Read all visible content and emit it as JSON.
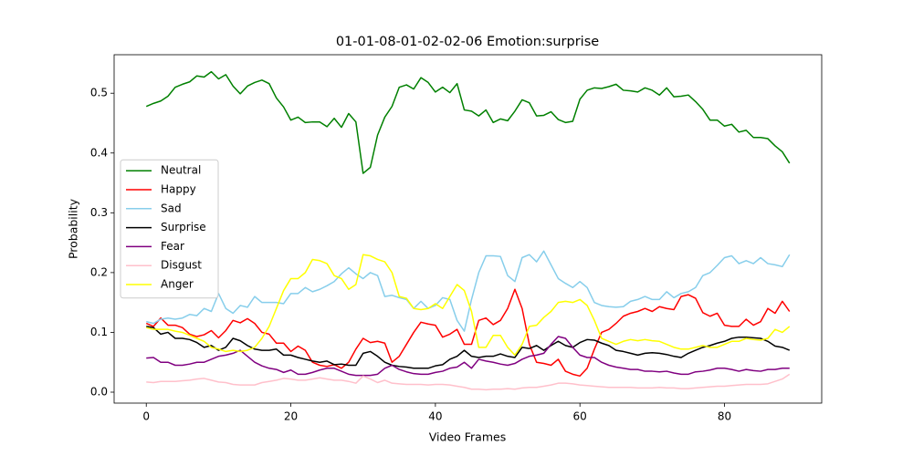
{
  "chart_data": {
    "type": "line",
    "title": "01-01-08-01-02-02-06 Emotion:surprise",
    "xlabel": "Video Frames",
    "ylabel": "Probability",
    "legend": "center left",
    "x": [
      0,
      1,
      2,
      3,
      4,
      5,
      6,
      7,
      8,
      9,
      10,
      11,
      12,
      13,
      14,
      15,
      16,
      17,
      18,
      19,
      20,
      21,
      22,
      23,
      24,
      25,
      26,
      27,
      28,
      29,
      30,
      31,
      32,
      33,
      34,
      35,
      36,
      37,
      38,
      39,
      40,
      41,
      42,
      43,
      44,
      45,
      46,
      47,
      48,
      49,
      50,
      51,
      52,
      53,
      54,
      55,
      56,
      57,
      58,
      59,
      60,
      61,
      62,
      63,
      64,
      65,
      66,
      67,
      68,
      69,
      70,
      71,
      72,
      73,
      74,
      75,
      76,
      77,
      78,
      79,
      80,
      81,
      82,
      83,
      84,
      85,
      86,
      87,
      88,
      89
    ],
    "xlim": [
      -4.45,
      93.45
    ],
    "xticks": [
      0,
      20,
      40,
      60,
      80
    ],
    "ylim": [
      -0.0183,
      0.5644
    ],
    "yticks": [
      {
        "value": 0,
        "label": "0.0"
      },
      0.1,
      0.2,
      0.3,
      0.4,
      0.5
    ],
    "series": [
      {
        "name": "Neutral",
        "color": "#008000",
        "values": [
          0.478,
          0.483,
          0.487,
          0.495,
          0.51,
          0.515,
          0.519,
          0.529,
          0.527,
          0.536,
          0.524,
          0.531,
          0.512,
          0.499,
          0.512,
          0.518,
          0.522,
          0.516,
          0.492,
          0.477,
          0.455,
          0.46,
          0.451,
          0.452,
          0.452,
          0.444,
          0.458,
          0.443,
          0.466,
          0.452,
          0.366,
          0.376,
          0.43,
          0.46,
          0.478,
          0.51,
          0.514,
          0.507,
          0.526,
          0.518,
          0.502,
          0.51,
          0.501,
          0.516,
          0.472,
          0.47,
          0.462,
          0.472,
          0.451,
          0.457,
          0.454,
          0.47,
          0.489,
          0.484,
          0.462,
          0.463,
          0.469,
          0.456,
          0.451,
          0.453,
          0.49,
          0.505,
          0.509,
          0.508,
          0.511,
          0.515,
          0.505,
          0.504,
          0.502,
          0.509,
          0.505,
          0.497,
          0.509,
          0.494,
          0.495,
          0.497,
          0.486,
          0.473,
          0.455,
          0.455,
          0.445,
          0.448,
          0.435,
          0.438,
          0.426,
          0.426,
          0.424,
          0.412,
          0.402,
          0.383
        ]
      },
      {
        "name": "Happy",
        "color": "#ff0000",
        "values": [
          0.115,
          0.11,
          0.124,
          0.112,
          0.112,
          0.108,
          0.097,
          0.093,
          0.096,
          0.103,
          0.091,
          0.103,
          0.12,
          0.116,
          0.123,
          0.115,
          0.1,
          0.097,
          0.082,
          0.082,
          0.068,
          0.077,
          0.07,
          0.05,
          0.045,
          0.043,
          0.046,
          0.04,
          0.05,
          0.072,
          0.09,
          0.083,
          0.085,
          0.082,
          0.05,
          0.06,
          0.08,
          0.1,
          0.117,
          0.114,
          0.112,
          0.092,
          0.097,
          0.105,
          0.08,
          0.08,
          0.12,
          0.124,
          0.113,
          0.12,
          0.14,
          0.172,
          0.14,
          0.08,
          0.05,
          0.048,
          0.045,
          0.055,
          0.035,
          0.03,
          0.027,
          0.04,
          0.072,
          0.1,
          0.105,
          0.115,
          0.127,
          0.132,
          0.135,
          0.14,
          0.135,
          0.143,
          0.14,
          0.138,
          0.16,
          0.163,
          0.157,
          0.133,
          0.127,
          0.132,
          0.112,
          0.11,
          0.11,
          0.122,
          0.112,
          0.118,
          0.14,
          0.132,
          0.152,
          0.135
        ]
      },
      {
        "name": "Sad",
        "color": "#87ceeb",
        "values": [
          0.118,
          0.115,
          0.122,
          0.124,
          0.122,
          0.124,
          0.13,
          0.128,
          0.14,
          0.135,
          0.165,
          0.14,
          0.132,
          0.145,
          0.142,
          0.16,
          0.15,
          0.15,
          0.15,
          0.148,
          0.165,
          0.165,
          0.175,
          0.168,
          0.172,
          0.178,
          0.185,
          0.198,
          0.208,
          0.198,
          0.19,
          0.2,
          0.195,
          0.16,
          0.162,
          0.158,
          0.155,
          0.14,
          0.152,
          0.14,
          0.145,
          0.158,
          0.155,
          0.12,
          0.102,
          0.155,
          0.2,
          0.228,
          0.228,
          0.227,
          0.195,
          0.185,
          0.225,
          0.23,
          0.218,
          0.236,
          0.213,
          0.19,
          0.182,
          0.175,
          0.185,
          0.175,
          0.15,
          0.145,
          0.143,
          0.142,
          0.143,
          0.152,
          0.155,
          0.16,
          0.155,
          0.155,
          0.168,
          0.158,
          0.165,
          0.168,
          0.175,
          0.195,
          0.2,
          0.212,
          0.225,
          0.228,
          0.215,
          0.22,
          0.215,
          0.225,
          0.215,
          0.213,
          0.21,
          0.23
        ]
      },
      {
        "name": "Surprise",
        "color": "#000000",
        "values": [
          0.11,
          0.108,
          0.097,
          0.1,
          0.09,
          0.09,
          0.088,
          0.083,
          0.075,
          0.078,
          0.07,
          0.075,
          0.09,
          0.086,
          0.078,
          0.072,
          0.07,
          0.07,
          0.072,
          0.062,
          0.062,
          0.058,
          0.055,
          0.052,
          0.05,
          0.052,
          0.046,
          0.047,
          0.045,
          0.045,
          0.065,
          0.068,
          0.06,
          0.05,
          0.045,
          0.043,
          0.042,
          0.04,
          0.04,
          0.04,
          0.044,
          0.046,
          0.055,
          0.06,
          0.07,
          0.06,
          0.058,
          0.06,
          0.06,
          0.064,
          0.06,
          0.058,
          0.075,
          0.073,
          0.078,
          0.07,
          0.078,
          0.085,
          0.078,
          0.075,
          0.083,
          0.088,
          0.087,
          0.082,
          0.078,
          0.07,
          0.068,
          0.065,
          0.062,
          0.065,
          0.066,
          0.065,
          0.063,
          0.06,
          0.058,
          0.065,
          0.07,
          0.075,
          0.078,
          0.082,
          0.085,
          0.09,
          0.092,
          0.092,
          0.091,
          0.09,
          0.085,
          0.077,
          0.075,
          0.07
        ]
      },
      {
        "name": "Fear",
        "color": "#800080",
        "values": [
          0.057,
          0.058,
          0.05,
          0.05,
          0.045,
          0.045,
          0.047,
          0.05,
          0.05,
          0.055,
          0.06,
          0.062,
          0.065,
          0.07,
          0.06,
          0.05,
          0.044,
          0.04,
          0.038,
          0.033,
          0.037,
          0.03,
          0.03,
          0.033,
          0.037,
          0.04,
          0.04,
          0.035,
          0.03,
          0.028,
          0.028,
          0.028,
          0.03,
          0.04,
          0.045,
          0.038,
          0.034,
          0.031,
          0.03,
          0.03,
          0.033,
          0.035,
          0.04,
          0.042,
          0.05,
          0.04,
          0.055,
          0.052,
          0.05,
          0.047,
          0.045,
          0.048,
          0.055,
          0.06,
          0.062,
          0.065,
          0.08,
          0.093,
          0.09,
          0.075,
          0.062,
          0.058,
          0.058,
          0.05,
          0.045,
          0.042,
          0.04,
          0.038,
          0.038,
          0.035,
          0.035,
          0.034,
          0.035,
          0.032,
          0.03,
          0.03,
          0.034,
          0.035,
          0.037,
          0.04,
          0.04,
          0.038,
          0.035,
          0.038,
          0.036,
          0.035,
          0.038,
          0.038,
          0.04,
          0.04
        ]
      },
      {
        "name": "Disgust",
        "color": "#ffc0cb",
        "values": [
          0.017,
          0.016,
          0.018,
          0.018,
          0.018,
          0.019,
          0.02,
          0.022,
          0.023,
          0.02,
          0.017,
          0.016,
          0.013,
          0.012,
          0.012,
          0.012,
          0.016,
          0.018,
          0.02,
          0.023,
          0.022,
          0.02,
          0.02,
          0.022,
          0.024,
          0.022,
          0.02,
          0.02,
          0.018,
          0.015,
          0.027,
          0.022,
          0.016,
          0.02,
          0.015,
          0.014,
          0.013,
          0.013,
          0.013,
          0.012,
          0.013,
          0.013,
          0.012,
          0.01,
          0.008,
          0.005,
          0.005,
          0.004,
          0.005,
          0.005,
          0.006,
          0.005,
          0.007,
          0.008,
          0.008,
          0.01,
          0.012,
          0.015,
          0.015,
          0.014,
          0.012,
          0.011,
          0.01,
          0.009,
          0.008,
          0.008,
          0.008,
          0.008,
          0.007,
          0.007,
          0.007,
          0.008,
          0.007,
          0.007,
          0.006,
          0.006,
          0.007,
          0.008,
          0.009,
          0.01,
          0.01,
          0.011,
          0.012,
          0.013,
          0.013,
          0.013,
          0.014,
          0.018,
          0.022,
          0.03
        ]
      },
      {
        "name": "Anger",
        "color": "#ffff00",
        "values": [
          0.108,
          0.105,
          0.105,
          0.105,
          0.102,
          0.1,
          0.095,
          0.09,
          0.085,
          0.075,
          0.072,
          0.068,
          0.07,
          0.068,
          0.07,
          0.075,
          0.09,
          0.11,
          0.14,
          0.17,
          0.19,
          0.19,
          0.2,
          0.222,
          0.22,
          0.215,
          0.195,
          0.19,
          0.172,
          0.18,
          0.23,
          0.228,
          0.222,
          0.218,
          0.2,
          0.16,
          0.157,
          0.14,
          0.138,
          0.14,
          0.148,
          0.14,
          0.16,
          0.18,
          0.17,
          0.135,
          0.075,
          0.075,
          0.095,
          0.095,
          0.075,
          0.062,
          0.08,
          0.11,
          0.112,
          0.125,
          0.135,
          0.15,
          0.152,
          0.15,
          0.155,
          0.145,
          0.12,
          0.09,
          0.085,
          0.08,
          0.085,
          0.088,
          0.086,
          0.088,
          0.086,
          0.085,
          0.08,
          0.075,
          0.072,
          0.072,
          0.075,
          0.078,
          0.075,
          0.075,
          0.08,
          0.085,
          0.085,
          0.09,
          0.088,
          0.087,
          0.09,
          0.105,
          0.1,
          0.11
        ]
      }
    ]
  }
}
